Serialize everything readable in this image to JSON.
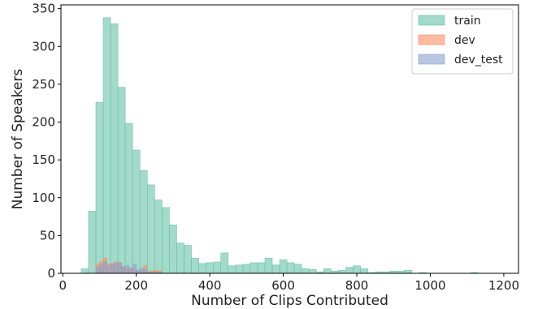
{
  "chart_data": {
    "type": "bar",
    "title": "",
    "xlabel": "Number of Clips Contributed",
    "ylabel": "Number of Speakers",
    "xlim": [
      -5,
      1240
    ],
    "ylim": [
      0,
      355
    ],
    "xticks": [
      0,
      200,
      400,
      600,
      800,
      1000,
      1200
    ],
    "yticks": [
      0,
      50,
      100,
      150,
      200,
      250,
      300,
      350
    ],
    "grid": false,
    "legend_position": "top-right",
    "series": [
      {
        "name": "train",
        "color": "#66c2a5",
        "bin_edges": [
          50,
          70,
          90,
          110,
          130,
          150,
          170,
          190,
          210,
          230,
          250,
          270,
          290,
          310,
          330,
          350,
          370,
          390,
          410,
          430,
          450,
          470,
          490,
          510,
          530,
          550,
          570,
          590,
          610,
          630,
          650,
          670,
          690,
          710,
          730,
          750,
          770,
          790,
          810,
          830,
          850,
          870,
          890,
          910,
          930,
          950,
          970,
          990,
          1010,
          1030,
          1050,
          1070,
          1090,
          1110,
          1130,
          1150
        ],
        "counts": [
          6,
          82,
          226,
          338,
          330,
          246,
          198,
          163,
          136,
          117,
          97,
          87,
          64,
          40,
          37,
          20,
          13,
          14,
          15,
          27,
          10,
          11,
          12,
          14,
          14,
          20,
          11,
          18,
          14,
          12,
          6,
          5,
          2,
          6,
          3,
          4,
          8,
          10,
          6,
          1,
          2,
          2,
          3,
          3,
          4,
          0,
          1,
          0,
          0,
          0,
          0,
          0,
          0,
          1,
          0
        ]
      },
      {
        "name": "dev",
        "color": "#fc8d62",
        "bin_edges": [
          90,
          100,
          110,
          120,
          130,
          140,
          150,
          160,
          170,
          180,
          190,
          200,
          210,
          220,
          230,
          240,
          250,
          260,
          270
        ],
        "counts": [
          12,
          15,
          20,
          12,
          13,
          15,
          14,
          8,
          6,
          6,
          5,
          3,
          3,
          10,
          2,
          3,
          4,
          3
        ]
      },
      {
        "name": "dev_test",
        "color": "#8da0cb",
        "bin_edges": [
          90,
          100,
          110,
          120,
          130,
          140,
          150,
          160,
          170,
          180,
          190,
          200,
          210,
          220,
          230,
          240,
          250,
          260,
          270
        ],
        "counts": [
          8,
          11,
          15,
          10,
          12,
          13,
          14,
          9,
          10,
          7,
          12,
          4,
          6,
          5,
          2,
          2,
          1,
          2
        ]
      }
    ]
  }
}
